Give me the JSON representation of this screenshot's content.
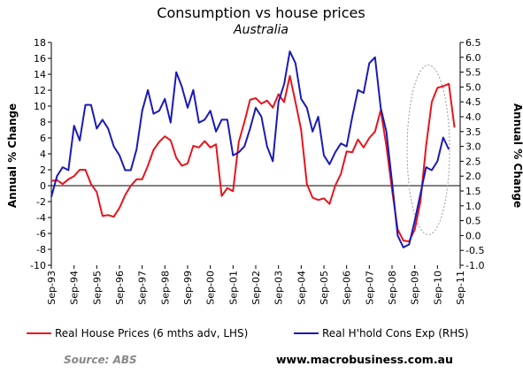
{
  "chart_data": {
    "type": "line",
    "title": "Consumption vs house prices",
    "subtitle": "Australia",
    "ylabel_left": "Annual % Change",
    "ylabel_right": "Annual % Change",
    "ylim_left": [
      -10,
      18
    ],
    "ylim_right": [
      -1.0,
      6.5
    ],
    "yticks_left": [
      "18",
      "16",
      "14",
      "12",
      "10",
      "8",
      "6",
      "4",
      "2",
      "0",
      "-2",
      "-4",
      "-6",
      "-8",
      "-10"
    ],
    "yticks_right": [
      "6.5",
      "6.0",
      "5.5",
      "5.0",
      "4.5",
      "4.0",
      "3.5",
      "3.0",
      "2.5",
      "2.0",
      "1.5",
      "1.0",
      "0.5",
      "0.0",
      "-0.5",
      "-1.0"
    ],
    "x_tick_labels": [
      "Sep-93",
      "Sep-94",
      "Sep-95",
      "Sep-96",
      "Sep-97",
      "Sep-98",
      "Sep-99",
      "Sep-00",
      "Sep-01",
      "Sep-02",
      "Sep-03",
      "Sep-04",
      "Sep-05",
      "Sep-06",
      "Sep-07",
      "Sep-08",
      "Sep-09",
      "Sep-10",
      "Sep-11"
    ],
    "x_start_year": 1993.75,
    "x_end_year": 2011.75,
    "grid": false,
    "legend_position": "bottom",
    "annotation": "dotted ellipse highlighting 2010 peaks",
    "series": [
      {
        "name": "Real House Prices (6 mths adv, LHS)",
        "axis": "left",
        "color": "#e8141c",
        "x": [
          1993.75,
          1994.0,
          1994.25,
          1994.5,
          1994.75,
          1995.0,
          1995.25,
          1995.5,
          1995.75,
          1996.0,
          1996.25,
          1996.5,
          1996.75,
          1997.0,
          1997.25,
          1997.5,
          1997.75,
          1998.0,
          1998.25,
          1998.5,
          1998.75,
          1999.0,
          1999.25,
          1999.5,
          1999.75,
          2000.0,
          2000.25,
          2000.5,
          2000.75,
          2001.0,
          2001.25,
          2001.5,
          2001.75,
          2002.0,
          2002.25,
          2002.5,
          2002.75,
          2003.0,
          2003.25,
          2003.5,
          2003.75,
          2004.0,
          2004.25,
          2004.5,
          2004.75,
          2005.0,
          2005.25,
          2005.5,
          2005.75,
          2006.0,
          2006.25,
          2006.5,
          2006.75,
          2007.0,
          2007.25,
          2007.5,
          2007.75,
          2008.0,
          2008.25,
          2008.5,
          2008.75,
          2009.0,
          2009.25,
          2009.5,
          2009.75,
          2010.0,
          2010.25,
          2010.5,
          2010.75,
          2011.0,
          2011.25,
          2011.5
        ],
        "values": [
          0.6,
          0.7,
          0.2,
          0.8,
          1.2,
          2.0,
          2.0,
          0.2,
          -0.8,
          -3.8,
          -3.7,
          -3.9,
          -2.8,
          -1.2,
          0.0,
          0.8,
          0.8,
          2.5,
          4.5,
          5.5,
          6.2,
          5.7,
          3.5,
          2.5,
          2.8,
          5.0,
          4.8,
          5.6,
          4.8,
          5.2,
          -1.3,
          -0.3,
          -0.7,
          5.5,
          8.0,
          10.8,
          11.0,
          10.3,
          10.7,
          9.8,
          11.5,
          10.5,
          13.8,
          10.5,
          7.0,
          0.2,
          -1.5,
          -1.8,
          -1.6,
          -2.3,
          0.0,
          1.5,
          4.3,
          4.2,
          5.8,
          4.8,
          6.0,
          6.8,
          9.5,
          5.0,
          -0.5,
          -5.5,
          -6.9,
          -7.0,
          -5.5,
          -2.0,
          5.0,
          10.5,
          12.3,
          12.5,
          12.8,
          7.3
        ]
      },
      {
        "name": "Real H'hold Cons Exp (RHS)",
        "axis": "right",
        "color": "#1a1ab8",
        "x": [
          1993.75,
          1994.0,
          1994.25,
          1994.5,
          1994.75,
          1995.0,
          1995.25,
          1995.5,
          1995.75,
          1996.0,
          1996.25,
          1996.5,
          1996.75,
          1997.0,
          1997.25,
          1997.5,
          1997.75,
          1998.0,
          1998.25,
          1998.5,
          1998.75,
          1999.0,
          1999.25,
          1999.5,
          1999.75,
          2000.0,
          2000.25,
          2000.5,
          2000.75,
          2001.0,
          2001.25,
          2001.5,
          2001.75,
          2002.0,
          2002.25,
          2002.5,
          2002.75,
          2003.0,
          2003.25,
          2003.5,
          2003.75,
          2004.0,
          2004.25,
          2004.5,
          2004.75,
          2005.0,
          2005.25,
          2005.5,
          2005.75,
          2006.0,
          2006.25,
          2006.5,
          2006.75,
          2007.0,
          2007.25,
          2007.5,
          2007.75,
          2008.0,
          2008.25,
          2008.5,
          2008.75,
          2009.0,
          2009.25,
          2009.5,
          2009.75,
          2010.0,
          2010.25,
          2010.5,
          2010.75,
          2011.0,
          2011.25
        ],
        "values": [
          1.3,
          2.0,
          2.3,
          2.2,
          3.7,
          3.2,
          4.4,
          4.4,
          3.6,
          3.9,
          3.6,
          3.0,
          2.7,
          2.2,
          2.2,
          2.9,
          4.2,
          4.9,
          4.1,
          4.2,
          4.6,
          3.8,
          5.5,
          5.0,
          4.3,
          4.9,
          3.8,
          3.9,
          4.2,
          3.5,
          3.9,
          3.9,
          2.7,
          2.8,
          3.0,
          3.6,
          4.3,
          4.0,
          3.0,
          2.5,
          4.5,
          5.1,
          6.2,
          5.8,
          4.6,
          4.3,
          3.5,
          4.0,
          2.7,
          2.4,
          2.8,
          3.1,
          3.0,
          4.0,
          4.9,
          4.8,
          5.8,
          6.0,
          4.3,
          3.5,
          1.8,
          0.0,
          -0.4,
          -0.3,
          0.5,
          1.4,
          2.3,
          2.2,
          2.5,
          3.3,
          2.9
        ]
      }
    ]
  },
  "legend": {
    "house_label": "Real House Prices (6 mths adv, LHS)",
    "cons_label": "Real H'hold Cons Exp (RHS)"
  },
  "footer": {
    "source": "Source: ABS",
    "site": "www.macrobusiness.com.au"
  }
}
